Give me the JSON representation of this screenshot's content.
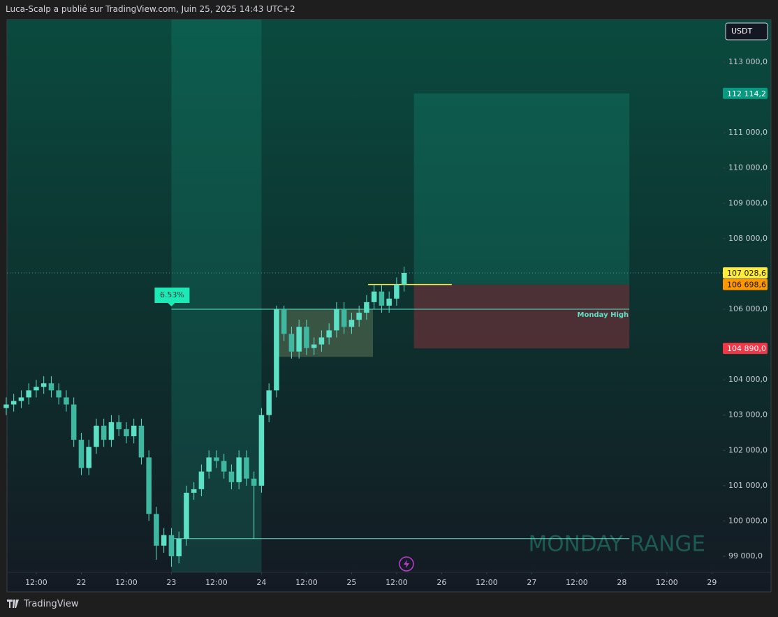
{
  "header": "Luca-Scalp a publié sur TradingView.com, Juin 25, 2025 14:43 UTC+2",
  "footer": "TradingView",
  "chart_data": {
    "type": "candlestick",
    "currency": "USDT",
    "color": "#5ce0c6",
    "x": [
      4,
      6,
      8,
      10,
      12,
      14,
      16,
      18,
      20,
      22,
      24,
      26,
      28,
      30,
      32,
      34,
      36,
      38,
      40,
      42,
      44,
      46,
      48,
      50,
      52,
      54,
      56,
      58,
      60,
      62,
      64,
      66,
      68,
      70,
      72,
      74,
      76,
      78,
      80,
      82,
      84,
      86,
      88,
      90,
      92,
      94,
      96,
      98,
      100,
      102,
      104,
      106,
      108,
      110
    ],
    "open": [
      103200,
      103300,
      103400,
      103500,
      103700,
      103800,
      103900,
      103700,
      103500,
      103300,
      102300,
      101500,
      102100,
      102700,
      102300,
      102800,
      102600,
      102400,
      102700,
      101800,
      100200,
      99300,
      99600,
      99000,
      99500,
      100800,
      100900,
      101400,
      101800,
      101700,
      101400,
      101100,
      101800,
      101200,
      101000,
      103000,
      103700,
      106000,
      105300,
      104800,
      105500,
      104900,
      105000,
      105200,
      105400,
      106000,
      105500,
      105700,
      105900,
      106200,
      106500,
      106100,
      106300,
      106700
    ],
    "high": [
      103500,
      103600,
      103700,
      103900,
      104000,
      104100,
      104100,
      103900,
      103700,
      103500,
      102500,
      102300,
      102900,
      102900,
      103000,
      103000,
      102800,
      102900,
      102900,
      102000,
      100400,
      99800,
      99800,
      99700,
      101000,
      101100,
      101600,
      102000,
      102000,
      101900,
      101600,
      102000,
      102000,
      101400,
      103200,
      103900,
      106100,
      106100,
      105500,
      105700,
      105700,
      105200,
      105400,
      105600,
      106200,
      106200,
      105900,
      106100,
      106400,
      106700,
      106700,
      106500,
      106900,
      107200
    ],
    "low": [
      103000,
      103100,
      103200,
      103300,
      103500,
      103600,
      103500,
      103300,
      103100,
      102100,
      101300,
      101300,
      101900,
      102100,
      102100,
      102400,
      102200,
      102200,
      101600,
      100000,
      98900,
      99100,
      98700,
      98800,
      99300,
      100600,
      100700,
      101200,
      101500,
      101200,
      100900,
      100900,
      101000,
      99500,
      100800,
      102800,
      103500,
      105100,
      104600,
      104600,
      104700,
      104700,
      104800,
      105000,
      105200,
      105300,
      105300,
      105500,
      105700,
      106000,
      105900,
      105900,
      106100,
      106500
    ],
    "close": [
      103300,
      103400,
      103500,
      103700,
      103800,
      103900,
      103700,
      103500,
      103300,
      102300,
      101500,
      102100,
      102700,
      102300,
      102800,
      102600,
      102400,
      102700,
      101800,
      100200,
      99300,
      99600,
      99000,
      99500,
      100800,
      100900,
      101400,
      101800,
      101700,
      101400,
      101100,
      101800,
      101200,
      101000,
      103000,
      103700,
      106000,
      105300,
      104800,
      105500,
      104900,
      105000,
      105200,
      105400,
      106000,
      105500,
      105700,
      105900,
      106200,
      106500,
      106100,
      106300,
      106700,
      107028.6
    ],
    "xlim": [
      4.2,
      194.9
    ],
    "ylim": [
      98545,
      114206
    ],
    "xticks": [
      {
        "value": 12,
        "label": "12:00"
      },
      {
        "value": 24,
        "label": "22"
      },
      {
        "value": 36,
        "label": "12:00"
      },
      {
        "value": 48,
        "label": "23"
      },
      {
        "value": 60,
        "label": "12:00"
      },
      {
        "value": 72,
        "label": "24"
      },
      {
        "value": 84,
        "label": "12:00"
      },
      {
        "value": 96,
        "label": "25"
      },
      {
        "value": 108,
        "label": "12:00"
      },
      {
        "value": 120,
        "label": "26"
      },
      {
        "value": 132,
        "label": "12:00"
      },
      {
        "value": 144,
        "label": "27"
      },
      {
        "value": 156,
        "label": "12:00"
      },
      {
        "value": 168,
        "label": "28"
      },
      {
        "value": 180,
        "label": "12:00"
      },
      {
        "value": 192,
        "label": "29"
      }
    ],
    "yticks": [
      {
        "value": 99000,
        "label": "99 000,0"
      },
      {
        "value": 100000,
        "label": "100 000,0"
      },
      {
        "value": 101000,
        "label": "101 000,0"
      },
      {
        "value": 102000,
        "label": "102 000,0"
      },
      {
        "value": 103000,
        "label": "103 000,0"
      },
      {
        "value": 104000,
        "label": "104 000,0"
      },
      {
        "value": 106000,
        "label": "106 000,0"
      },
      {
        "value": 107000,
        "label": "107 000,0"
      },
      {
        "value": 108000,
        "label": "108 000,0"
      },
      {
        "value": 109000,
        "label": "109 000,0"
      },
      {
        "value": 110000,
        "label": "110 000,0"
      },
      {
        "value": 111000,
        "label": "111 000,0"
      },
      {
        "value": 113000,
        "label": "113 000,0"
      }
    ],
    "price_tags": [
      {
        "value": 112114.2,
        "label": "112 114,2",
        "color": "#089981"
      },
      {
        "value": 107028.6,
        "label": "107 028,6",
        "color": "#ffeb3b"
      },
      {
        "value": 106698.6,
        "label": "106 698,6",
        "color": "#ff9800"
      },
      {
        "value": 104890.0,
        "label": "104 890,0",
        "color": "#f23645"
      }
    ],
    "monday_range": {
      "label": "MONDAY RANGE",
      "x": [
        48,
        72
      ]
    },
    "monday_high": {
      "label": "Monday High",
      "value": 106000,
      "x": [
        48,
        170
      ]
    },
    "monday_low": {
      "value": 99500,
      "x": [
        48,
        170
      ]
    },
    "measure": {
      "label": "6.53%",
      "x": 48,
      "value": 106000
    },
    "consolidation": {
      "x": [
        75.3,
        101.7
      ],
      "top": 106000,
      "bottom": 104650
    },
    "position": {
      "x": [
        112.6,
        170
      ],
      "target": 112114.2,
      "entry": 106698.6,
      "stop": 104890.0
    },
    "entry_line": {
      "value": 106698.6,
      "x": [
        100.4,
        122.7
      ]
    }
  }
}
